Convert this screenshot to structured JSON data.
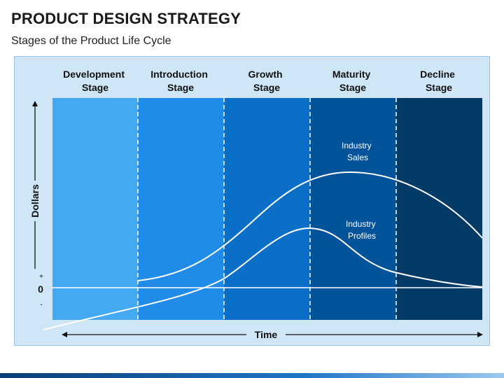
{
  "header": {
    "title": "PRODUCT DESIGN STRATEGY",
    "subtitle": "Stages of the Product Life Cycle"
  },
  "stages": [
    {
      "line1": "Development",
      "line2": "Stage",
      "color": "#43a9f2"
    },
    {
      "line1": "Introduction",
      "line2": "Stage",
      "color": "#218be8"
    },
    {
      "line1": "Growth",
      "line2": "Stage",
      "color": "#0b6ec7"
    },
    {
      "line1": "Maturity",
      "line2": "Stage",
      "color": "#03539a"
    },
    {
      "line1": "Decline",
      "line2": "Stage",
      "color": "#043a66"
    }
  ],
  "curves": {
    "sales": {
      "line1": "Industry",
      "line2": "Sales"
    },
    "profits": {
      "line1": "Industry",
      "line2": "Profiles"
    }
  },
  "axes": {
    "x_label": "Time",
    "y_label": "Dollars",
    "zero": "0",
    "plus": "+",
    "minus": "-"
  },
  "colors": {
    "panel_background": "#cfe6f7",
    "curve": "#ffffff"
  }
}
